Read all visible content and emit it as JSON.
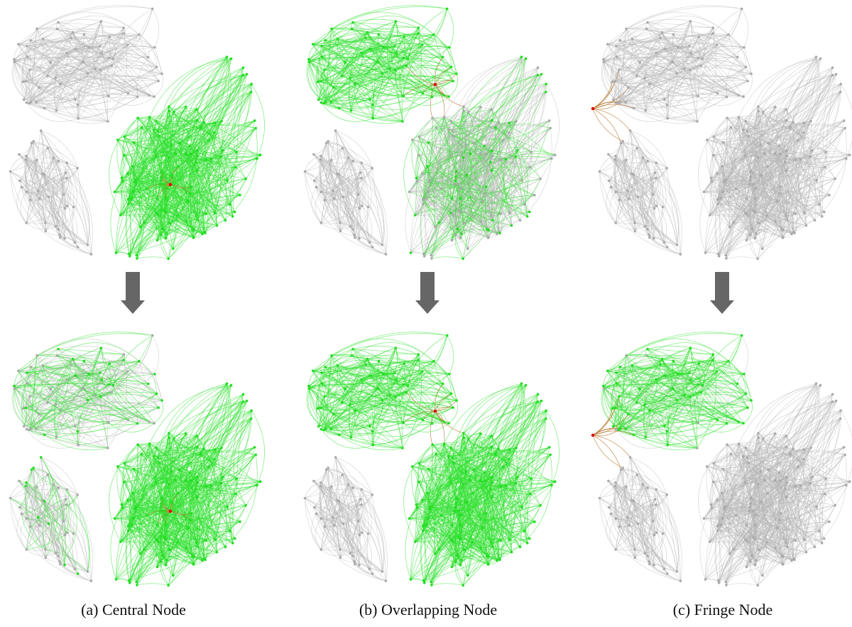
{
  "panels": [
    {
      "caption": "(a) Central Node"
    },
    {
      "caption": "(b) Overlapping Node"
    },
    {
      "caption": "(c) Fringe Node"
    }
  ]
}
